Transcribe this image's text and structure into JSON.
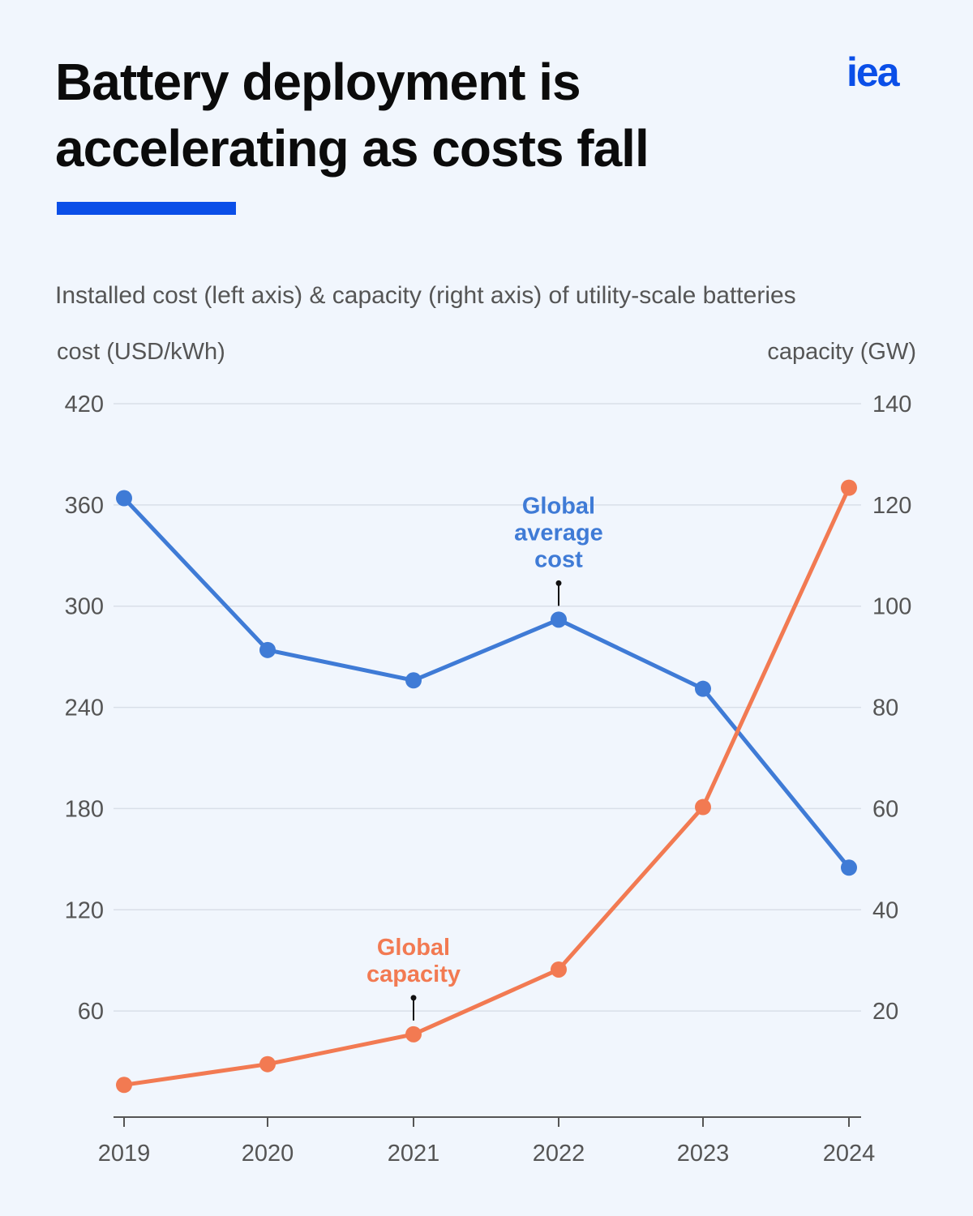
{
  "title": "Battery deployment is accelerating as costs fall",
  "logo": "iea",
  "colors": {
    "accent": "#0b4fe8",
    "cost": "#3f7bd6",
    "capacity": "#f27a52"
  },
  "chart_data": {
    "type": "line",
    "subtitle": "Installed cost (left axis) & capacity (right axis) of utility-scale batteries",
    "ylabel_left": "cost (USD/kWh)",
    "ylabel_right": "capacity (GW)",
    "categories": [
      "2019",
      "2020",
      "2021",
      "2022",
      "2023",
      "2024"
    ],
    "ylim_left": [
      0,
      420
    ],
    "yticks_left": [
      60,
      120,
      180,
      240,
      300,
      360,
      420
    ],
    "ylim_right": [
      0,
      140
    ],
    "yticks_right": [
      20,
      40,
      60,
      80,
      100,
      120,
      140
    ],
    "grid": true,
    "series": [
      {
        "name": "Global average cost",
        "axis": "left",
        "color": "#3f7bd6",
        "values": [
          364,
          274,
          256,
          292,
          251,
          145
        ]
      },
      {
        "name": "Global capacity",
        "axis": "right",
        "color": "#f27a52",
        "values": [
          5.4,
          9.5,
          15.4,
          28.2,
          60.3,
          123.4
        ]
      }
    ],
    "annotations": [
      {
        "series": 0,
        "at": "2022",
        "lines": [
          "Global",
          "average",
          "cost"
        ]
      },
      {
        "series": 1,
        "at": "2021",
        "lines": [
          "Global",
          "capacity"
        ]
      }
    ]
  }
}
